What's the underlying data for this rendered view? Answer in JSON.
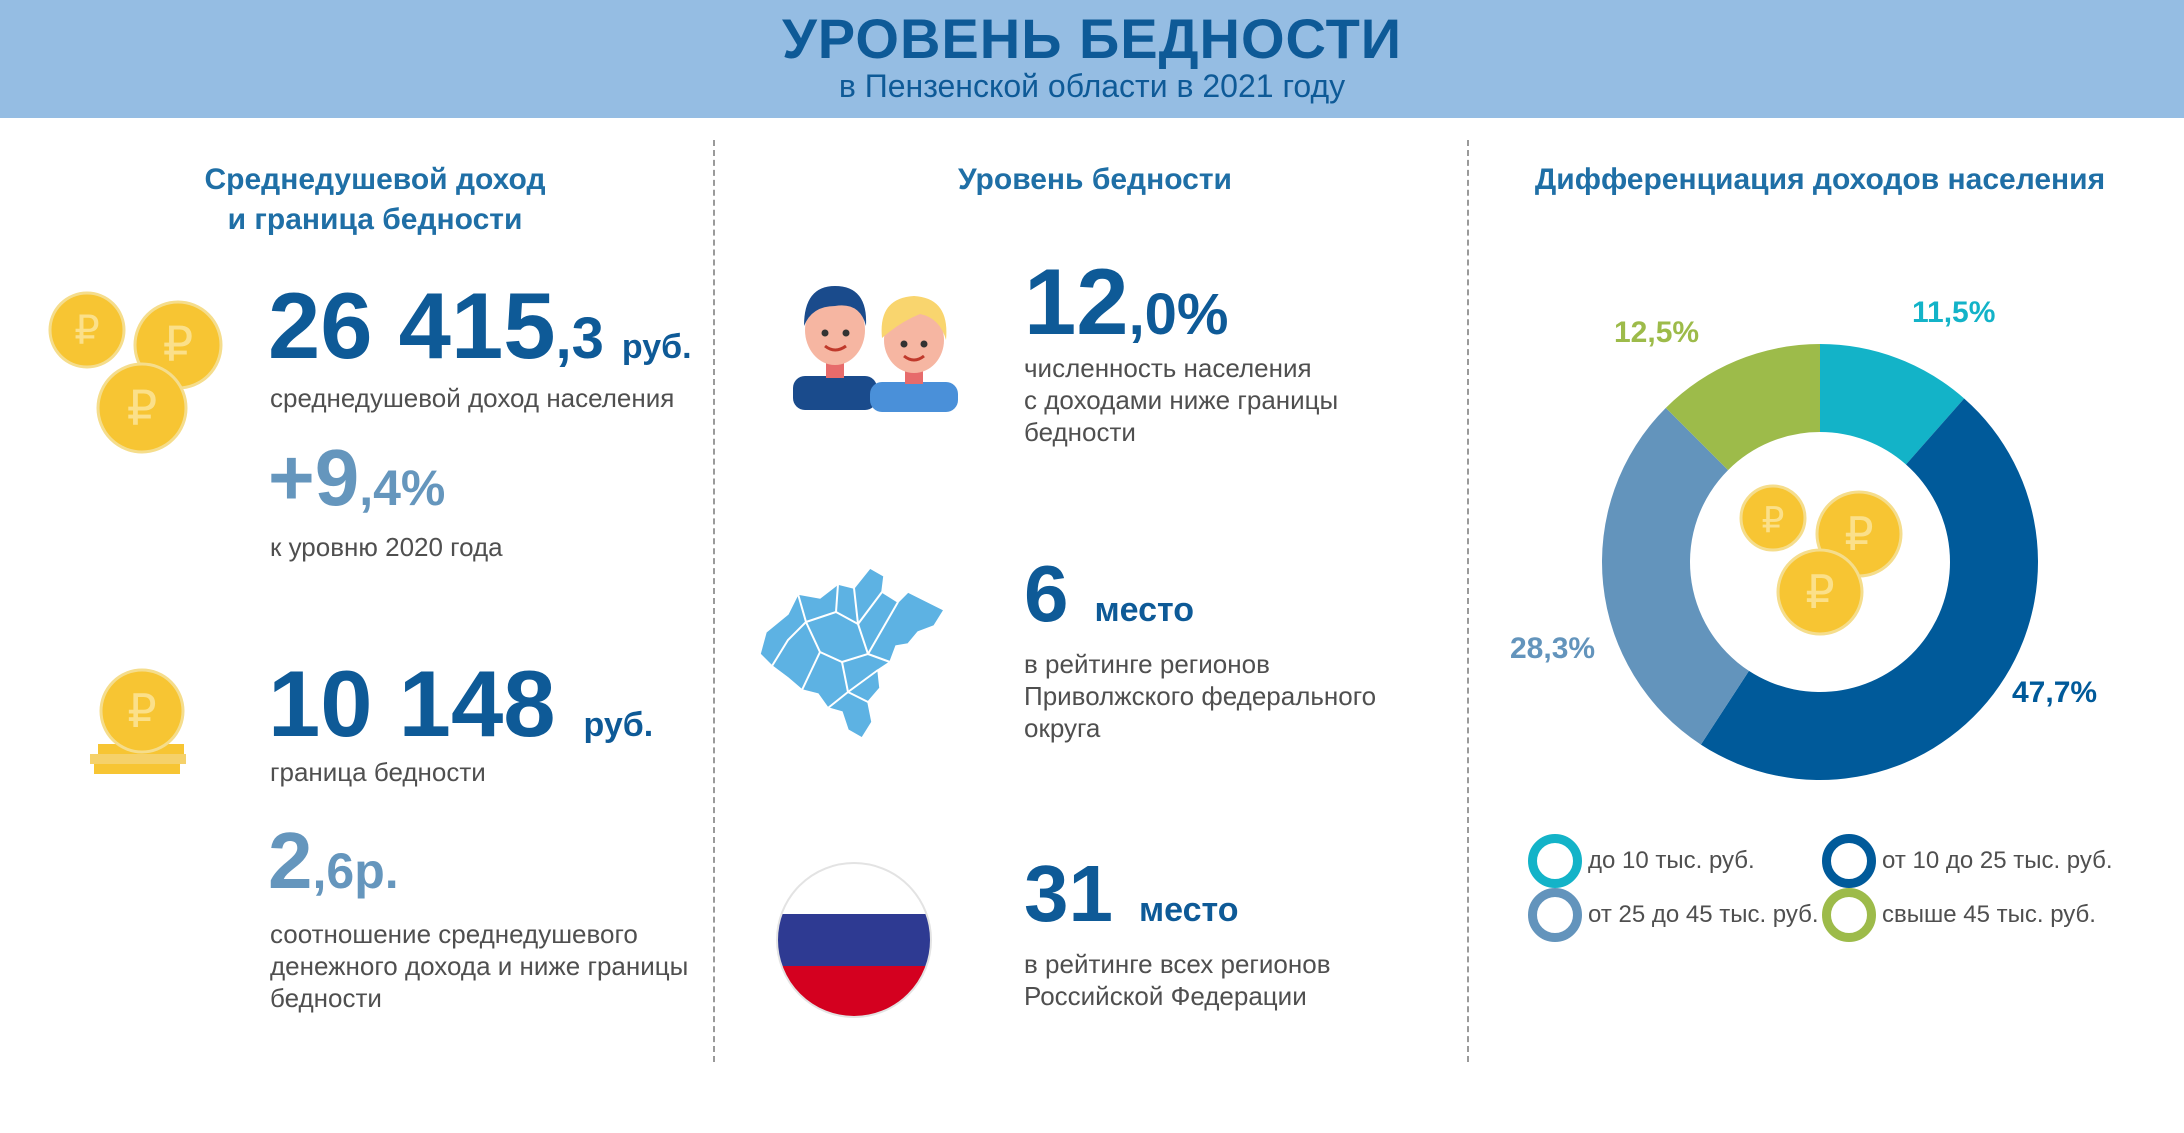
{
  "header": {
    "title": "УРОВЕНЬ БЕДНОСТИ",
    "subtitle": "в Пензенской области в 2021 году"
  },
  "col1": {
    "title_line1": "Среднедушевой доход",
    "title_line2": "и граница бедности",
    "income": {
      "main": "26 415",
      "frac": ",3",
      "unit": "руб.",
      "label": "среднедушевой доход населения"
    },
    "growth": {
      "main": "+9",
      "frac": ",4%",
      "label": "к уровню 2020 года"
    },
    "poverty_line": {
      "main": "10 148",
      "unit": "руб.",
      "label": "граница бедности"
    },
    "ratio": {
      "main": "2",
      "frac": ",6р.",
      "label_line1": "соотношение среднедушевого",
      "label_line2": "денежного дохода и ниже границы",
      "label_line3": "бедности"
    }
  },
  "col2": {
    "title": "Уровень бедности",
    "share": {
      "main": "12",
      "frac": ",0%",
      "label_line1": "численность населения",
      "label_line2": "с доходами ниже границы",
      "label_line3": "бедности"
    },
    "pfo_rank": {
      "main": "6",
      "unit": "место",
      "label_line1": "в рейтинге регионов",
      "label_line2": "Приволжского федерального",
      "label_line3": "округа"
    },
    "rf_rank": {
      "main": "31",
      "unit": "место",
      "label_line1": "в рейтинге всех регионов",
      "label_line2": "Российской Федерации"
    }
  },
  "col3": {
    "title": "Дифференциация доходов населения"
  },
  "chart_data": {
    "type": "pie",
    "categories": [
      "до 10 тыс. руб.",
      "от 10 до 25 тыс. руб.",
      "от 25 до 45 тыс. руб.",
      "свыше 45 тыс. руб."
    ],
    "values": [
      11.5,
      47.7,
      28.3,
      12.5
    ],
    "value_labels": [
      "11,5%",
      "47,7%",
      "28,3%",
      "12,5%"
    ],
    "colors": [
      "#13b3c8",
      "#005a9a",
      "#6394bc",
      "#9dbb4a"
    ],
    "donut": true,
    "legend_position": "bottom"
  },
  "colors": {
    "banner": "#95bde3",
    "primary": "#0e5a97",
    "secondary": "#6596bd",
    "coin": "#f7c533"
  },
  "icons": [
    "ruble-coins-icon",
    "ruble-coin-stack-icon",
    "people-icon",
    "region-map-icon",
    "russia-flag-icon"
  ]
}
